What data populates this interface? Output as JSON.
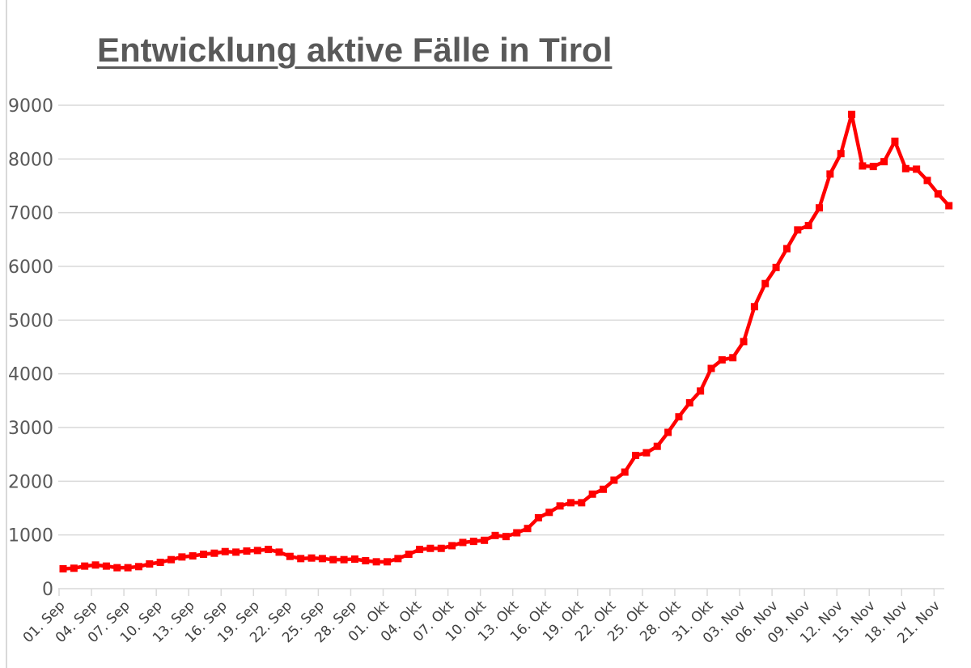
{
  "title": "Entwicklung aktive Fälle in Tirol",
  "colors": {
    "line": "#ff0000",
    "grid": "#d9d9d9",
    "text": "#595959"
  },
  "chart_data": {
    "type": "line",
    "title": "Entwicklung aktive Fälle in Tirol",
    "xlabel": "",
    "ylabel": "",
    "ylim": [
      0,
      9000
    ],
    "yticks": [
      0,
      1000,
      2000,
      3000,
      4000,
      5000,
      6000,
      7000,
      8000,
      9000
    ],
    "ytick_labels": [
      "0",
      "1000",
      "2000",
      "3000",
      "4000",
      "5000",
      "6000",
      "7000",
      "8000",
      "9000"
    ],
    "xtick_labels": [
      "01. Sep",
      "04. Sep",
      "07. Sep",
      "10. Sep",
      "13. Sep",
      "16. Sep",
      "19. Sep",
      "22. Sep",
      "25. Sep",
      "28. Sep",
      "01. Okt",
      "04. Okt",
      "07. Okt",
      "10. Okt",
      "13. Okt",
      "16. Okt",
      "19. Okt",
      "22. Okt",
      "25. Okt",
      "28. Okt",
      "31. Okt",
      "03. Nov",
      "06. Nov",
      "09. Nov",
      "12. Nov",
      "15. Nov",
      "18. Nov",
      "21. Nov"
    ],
    "grid": true,
    "legend": "none",
    "series": [
      {
        "name": "Aktive Fälle",
        "color": "#ff0000",
        "marker": "square",
        "values": [
          370,
          380,
          420,
          440,
          420,
          390,
          390,
          410,
          460,
          490,
          540,
          590,
          610,
          640,
          660,
          690,
          680,
          700,
          710,
          730,
          680,
          600,
          560,
          570,
          560,
          540,
          540,
          550,
          520,
          500,
          500,
          560,
          640,
          730,
          750,
          750,
          800,
          860,
          880,
          900,
          990,
          970,
          1040,
          1120,
          1320,
          1420,
          1540,
          1600,
          1600,
          1760,
          1850,
          2020,
          2170,
          2480,
          2530,
          2650,
          2910,
          3200,
          3460,
          3680,
          4100,
          4260,
          4300,
          4600,
          5250,
          5680,
          5980,
          6330,
          6680,
          6760,
          7090,
          7720,
          8100,
          8830,
          7870,
          7860,
          7950,
          8330,
          7820,
          7810,
          7600,
          7350,
          7130
        ]
      }
    ]
  }
}
